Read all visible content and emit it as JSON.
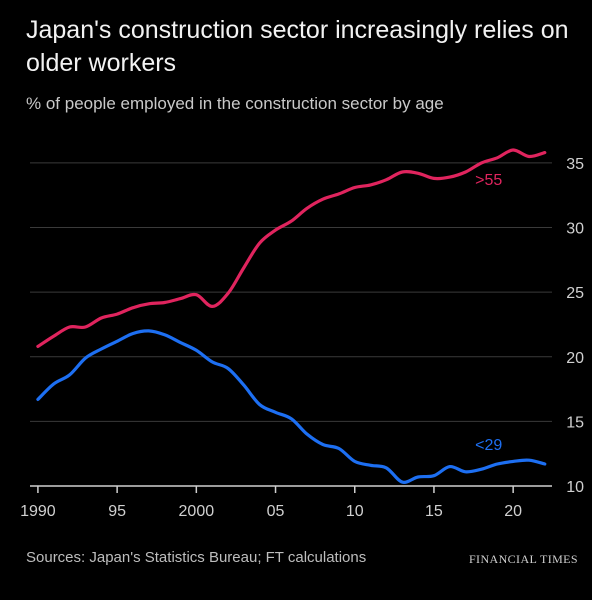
{
  "chart_data": {
    "type": "line",
    "title": "Japan's construction sector increasingly relies on older workers",
    "subtitle": "% of people employed in the construction sector by age",
    "xlabel": "",
    "ylabel": "",
    "xlim": [
      1989.5,
      2022.2
    ],
    "ylim": [
      10,
      36
    ],
    "x_ticks": [
      1990,
      1995,
      2000,
      2005,
      2010,
      2015,
      2020
    ],
    "x_tick_labels": [
      "1990",
      "95",
      "2000",
      "05",
      "10",
      "15",
      "20"
    ],
    "y_ticks": [
      10,
      15,
      20,
      25,
      30,
      35
    ],
    "y_tick_labels": [
      "10",
      "15",
      "20",
      "25",
      "30",
      "35"
    ],
    "grid": "horizontal",
    "series": [
      {
        "name": ">55",
        "color": "#e0245e",
        "x": [
          1990,
          1991,
          1992,
          1993,
          1994,
          1995,
          1996,
          1997,
          1998,
          1999,
          2000,
          2001,
          2002,
          2003,
          2004,
          2005,
          2006,
          2007,
          2008,
          2009,
          2010,
          2011,
          2012,
          2013,
          2014,
          2015,
          2016,
          2017,
          2018,
          2019,
          2020,
          2021,
          2022
        ],
        "values": [
          20.8,
          21.6,
          22.3,
          22.3,
          23.0,
          23.3,
          23.8,
          24.1,
          24.2,
          24.5,
          24.8,
          23.9,
          24.9,
          26.9,
          28.8,
          29.8,
          30.5,
          31.5,
          32.2,
          32.6,
          33.1,
          33.3,
          33.7,
          34.3,
          34.2,
          33.8,
          33.9,
          34.3,
          35.0,
          35.4,
          36.0,
          35.5,
          35.8
        ]
      },
      {
        "name": "<29",
        "color": "#1d6ff2",
        "x": [
          1990,
          1991,
          1992,
          1993,
          1994,
          1995,
          1996,
          1997,
          1998,
          1999,
          2000,
          2001,
          2002,
          2003,
          2004,
          2005,
          2006,
          2007,
          2008,
          2009,
          2010,
          2011,
          2012,
          2013,
          2014,
          2015,
          2016,
          2017,
          2018,
          2019,
          2020,
          2021,
          2022
        ],
        "values": [
          16.7,
          17.9,
          18.6,
          19.9,
          20.6,
          21.2,
          21.8,
          22.0,
          21.7,
          21.1,
          20.5,
          19.6,
          19.1,
          17.8,
          16.3,
          15.7,
          15.2,
          14.0,
          13.2,
          12.9,
          11.9,
          11.6,
          11.4,
          10.3,
          10.7,
          10.8,
          11.5,
          11.1,
          11.3,
          11.7,
          11.9,
          12.0,
          11.7
        ]
      }
    ],
    "annotations": [
      {
        "text": ">55",
        "series": ">55",
        "x": 2017.6,
        "y": 33.3
      },
      {
        "text": "<29",
        "series": "<29",
        "x": 2017.6,
        "y": 12.8
      }
    ]
  },
  "footer": {
    "source": "Sources: Japan's Statistics Bureau; FT calculations",
    "brand": "FINANCIAL TIMES"
  },
  "colors": {
    "background": "#000000",
    "grid": "#3a3a3a",
    "axis": "#cfcfcf",
    "tick_label": "#d0d0d0"
  }
}
